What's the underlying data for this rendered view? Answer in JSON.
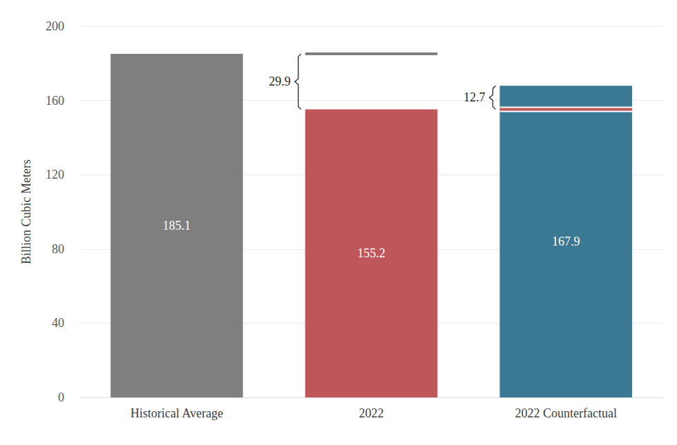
{
  "chart_data": {
    "type": "bar",
    "categories": [
      "Historical Average",
      "2022",
      "2022 Counterfactual"
    ],
    "values": [
      185.1,
      155.2,
      167.9
    ],
    "colors": [
      "#7f7f7f",
      "#bf565a",
      "#3b7893"
    ],
    "ylabel": "Billion Cubic Meters",
    "ylim": [
      0,
      200
    ],
    "yticks": [
      0,
      40,
      80,
      120,
      160,
      200
    ],
    "grid": true,
    "data_labels": true,
    "annotations": [
      {
        "category": "2022",
        "from": 185.1,
        "to": 155.2,
        "value": 29.9,
        "color": "#7f7f7f"
      },
      {
        "category": "2022 Counterfactual",
        "from": 155.2,
        "to": 167.9,
        "value": 12.7,
        "color": "#bf565a"
      }
    ]
  }
}
